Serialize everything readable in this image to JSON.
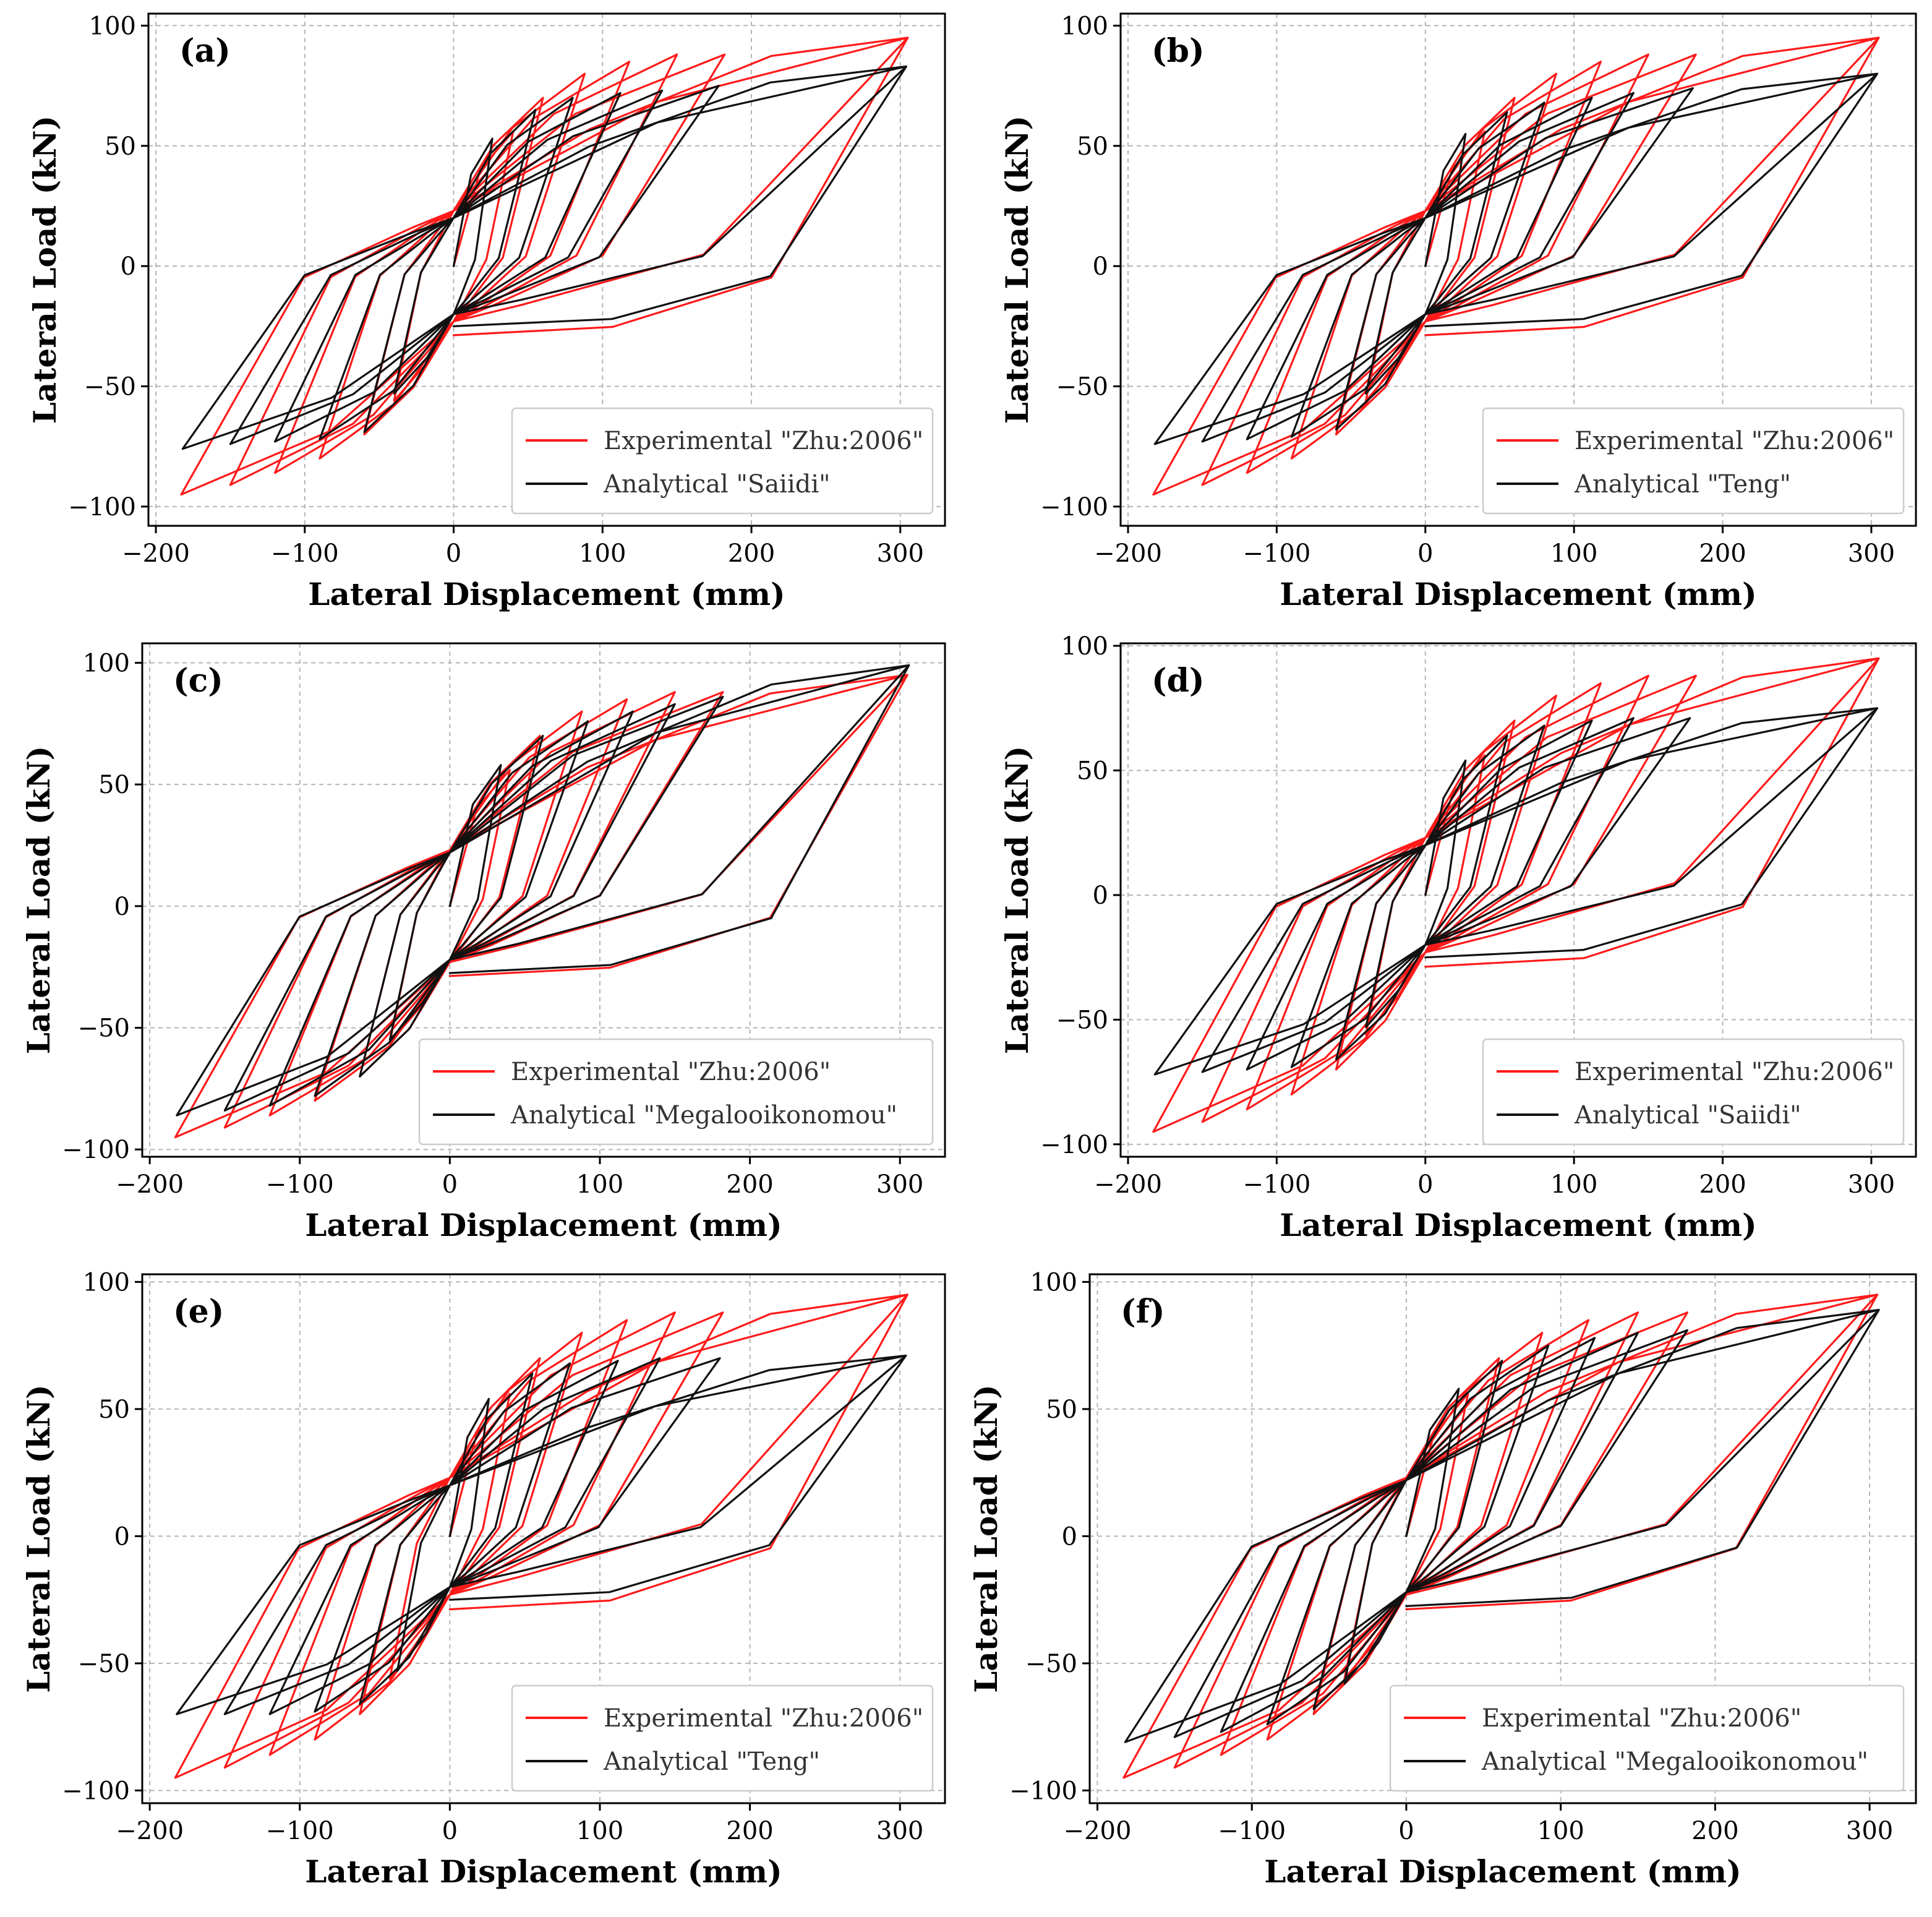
{
  "figure": {
    "colors": {
      "experimental": "#ff1a1a",
      "analytical": "#111111"
    },
    "legend_experimental": "Experimental \"Zhu:2006\""
  },
  "chart_data": [
    {
      "panel": "(a)",
      "type": "line",
      "xlabel": "Lateral Displacement (mm)",
      "ylabel": "Lateral Load (kN)",
      "xlim": [
        -205,
        330
      ],
      "ylim": [
        -108,
        105
      ],
      "xticks": [
        -200,
        -100,
        0,
        100,
        200,
        300
      ],
      "yticks": [
        -100,
        -50,
        0,
        50,
        100
      ],
      "grid": true,
      "legend_position": "lower-right",
      "series": [
        {
          "name": "Experimental \"Zhu:2006\"",
          "role": "experimental",
          "peaks": [
            [
              -40,
              -56
            ],
            [
              -60,
              -70
            ],
            [
              -90,
              -80
            ],
            [
              -120,
              -86
            ],
            [
              -150,
              -91
            ],
            [
              -183,
              -95
            ],
            [
              40,
              56
            ],
            [
              60,
              70
            ],
            [
              88,
              80
            ],
            [
              118,
              85
            ],
            [
              150,
              88
            ],
            [
              182,
              88
            ],
            [
              305,
              95
            ]
          ],
          "unload": [
            -23,
            23
          ]
        },
        {
          "name": "Analytical \"Saiidi\"",
          "role": "analytical",
          "peaks": [
            [
              -40,
              -53
            ],
            [
              -60,
              -69
            ],
            [
              -90,
              -72
            ],
            [
              -120,
              -73
            ],
            [
              -150,
              -74
            ],
            [
              -182,
              -76
            ],
            [
              26,
              53
            ],
            [
              55,
              65
            ],
            [
              80,
              70
            ],
            [
              112,
              72
            ],
            [
              140,
              73
            ],
            [
              178,
              75
            ],
            [
              304,
              83
            ]
          ],
          "unload": [
            -20,
            20
          ]
        }
      ]
    },
    {
      "panel": "(b)",
      "type": "line",
      "xlabel": "Lateral Displacement (mm)",
      "ylabel": "Lateral Load (kN)",
      "xlim": [
        -205,
        330
      ],
      "ylim": [
        -108,
        105
      ],
      "xticks": [
        -200,
        -100,
        0,
        100,
        200,
        300
      ],
      "yticks": [
        -100,
        -50,
        0,
        50,
        100
      ],
      "grid": true,
      "legend_position": "lower-right",
      "series": [
        {
          "name": "Experimental \"Zhu:2006\"",
          "role": "experimental",
          "peaks": [
            [
              -40,
              -56
            ],
            [
              -60,
              -70
            ],
            [
              -90,
              -80
            ],
            [
              -120,
              -86
            ],
            [
              -150,
              -91
            ],
            [
              -183,
              -95
            ],
            [
              40,
              56
            ],
            [
              60,
              70
            ],
            [
              88,
              80
            ],
            [
              118,
              85
            ],
            [
              150,
              88
            ],
            [
              182,
              88
            ],
            [
              305,
              95
            ]
          ],
          "unload": [
            -23,
            23
          ]
        },
        {
          "name": "Analytical \"Teng\"",
          "role": "analytical",
          "peaks": [
            [
              -40,
              -53
            ],
            [
              -60,
              -68
            ],
            [
              -90,
              -71
            ],
            [
              -120,
              -72
            ],
            [
              -150,
              -73
            ],
            [
              -182,
              -74
            ],
            [
              27,
              55
            ],
            [
              55,
              64
            ],
            [
              80,
              68
            ],
            [
              112,
              70
            ],
            [
              140,
              72
            ],
            [
              180,
              74
            ],
            [
              304,
              80
            ]
          ],
          "unload": [
            -20,
            20
          ]
        }
      ]
    },
    {
      "panel": "(c)",
      "type": "line",
      "xlabel": "Lateral Displacement (mm)",
      "ylabel": "Lateral Load (kN)",
      "xlim": [
        -205,
        330
      ],
      "ylim": [
        -103,
        108
      ],
      "xticks": [
        -200,
        -100,
        0,
        100,
        200,
        300
      ],
      "yticks": [
        -100,
        -50,
        0,
        50,
        100
      ],
      "grid": true,
      "legend_position": "lower-right",
      "series": [
        {
          "name": "Experimental \"Zhu:2006\"",
          "role": "experimental",
          "peaks": [
            [
              -40,
              -56
            ],
            [
              -60,
              -70
            ],
            [
              -90,
              -80
            ],
            [
              -120,
              -86
            ],
            [
              -150,
              -91
            ],
            [
              -183,
              -95
            ],
            [
              40,
              56
            ],
            [
              60,
              70
            ],
            [
              88,
              80
            ],
            [
              118,
              85
            ],
            [
              150,
              88
            ],
            [
              182,
              88
            ],
            [
              305,
              95
            ]
          ],
          "unload": [
            -23,
            23
          ]
        },
        {
          "name": "Analytical \"Megalooikonomou\"",
          "role": "analytical",
          "peaks": [
            [
              -40,
              -55
            ],
            [
              -60,
              -70
            ],
            [
              -90,
              -78
            ],
            [
              -120,
              -82
            ],
            [
              -150,
              -84
            ],
            [
              -182,
              -86
            ],
            [
              34,
              58
            ],
            [
              62,
              70
            ],
            [
              92,
              76
            ],
            [
              122,
              80
            ],
            [
              150,
              83
            ],
            [
              182,
              86
            ],
            [
              306,
              99
            ]
          ],
          "unload": [
            -22,
            22
          ]
        }
      ]
    },
    {
      "panel": "(d)",
      "type": "line",
      "xlabel": "Lateral Displacement (mm)",
      "ylabel": "Lateral Load (kN)",
      "xlim": [
        -205,
        330
      ],
      "ylim": [
        -105,
        101
      ],
      "xticks": [
        -200,
        -100,
        0,
        100,
        200,
        300
      ],
      "yticks": [
        -100,
        -50,
        0,
        50,
        100
      ],
      "grid": true,
      "legend_position": "lower-right",
      "series": [
        {
          "name": "Experimental \"Zhu:2006\"",
          "role": "experimental",
          "peaks": [
            [
              -40,
              -56
            ],
            [
              -60,
              -70
            ],
            [
              -90,
              -80
            ],
            [
              -120,
              -86
            ],
            [
              -150,
              -91
            ],
            [
              -183,
              -95
            ],
            [
              40,
              56
            ],
            [
              60,
              70
            ],
            [
              88,
              80
            ],
            [
              118,
              85
            ],
            [
              150,
              88
            ],
            [
              182,
              88
            ],
            [
              305,
              95
            ]
          ],
          "unload": [
            -23,
            23
          ]
        },
        {
          "name": "Analytical \"Saiidi\"",
          "role": "analytical",
          "peaks": [
            [
              -40,
              -53
            ],
            [
              -60,
              -66
            ],
            [
              -90,
              -69
            ],
            [
              -120,
              -70
            ],
            [
              -150,
              -71
            ],
            [
              -182,
              -72
            ],
            [
              27,
              54
            ],
            [
              55,
              64
            ],
            [
              80,
              68
            ],
            [
              112,
              70
            ],
            [
              140,
              71
            ],
            [
              178,
              71
            ],
            [
              304,
              75
            ]
          ],
          "unload": [
            -20,
            20
          ]
        }
      ]
    },
    {
      "panel": "(e)",
      "type": "line",
      "xlabel": "Lateral Displacement (mm)",
      "ylabel": "Lateral Load (kN)",
      "xlim": [
        -205,
        330
      ],
      "ylim": [
        -105,
        103
      ],
      "xticks": [
        -200,
        -100,
        0,
        100,
        200,
        300
      ],
      "yticks": [
        -100,
        -50,
        0,
        50,
        100
      ],
      "grid": true,
      "legend_position": "lower-right",
      "series": [
        {
          "name": "Experimental \"Zhu:2006\"",
          "role": "experimental",
          "peaks": [
            [
              -40,
              -56
            ],
            [
              -60,
              -70
            ],
            [
              -90,
              -80
            ],
            [
              -120,
              -86
            ],
            [
              -150,
              -91
            ],
            [
              -183,
              -95
            ],
            [
              40,
              56
            ],
            [
              60,
              70
            ],
            [
              88,
              80
            ],
            [
              118,
              85
            ],
            [
              150,
              88
            ],
            [
              182,
              88
            ],
            [
              305,
              95
            ]
          ],
          "unload": [
            -23,
            23
          ]
        },
        {
          "name": "Analytical \"Teng\"",
          "role": "analytical",
          "peaks": [
            [
              -35,
              -53
            ],
            [
              -60,
              -66
            ],
            [
              -90,
              -69
            ],
            [
              -120,
              -70
            ],
            [
              -150,
              -70
            ],
            [
              -182,
              -70
            ],
            [
              26,
              54
            ],
            [
              55,
              64
            ],
            [
              80,
              68
            ],
            [
              112,
              69
            ],
            [
              140,
              70
            ],
            [
              180,
              70
            ],
            [
              304,
              71
            ]
          ],
          "unload": [
            -20,
            20
          ]
        }
      ]
    },
    {
      "panel": "(f)",
      "type": "line",
      "xlabel": "Lateral Displacement (mm)",
      "ylabel": "Lateral Load (kN)",
      "xlim": [
        -205,
        330
      ],
      "ylim": [
        -105,
        103
      ],
      "xticks": [
        -200,
        -100,
        0,
        100,
        200,
        300
      ],
      "yticks": [
        -100,
        -50,
        0,
        50,
        100
      ],
      "grid": true,
      "legend_position": "lower-right",
      "series": [
        {
          "name": "Experimental \"Zhu:2006\"",
          "role": "experimental",
          "peaks": [
            [
              -40,
              -56
            ],
            [
              -60,
              -70
            ],
            [
              -90,
              -80
            ],
            [
              -120,
              -86
            ],
            [
              -150,
              -91
            ],
            [
              -183,
              -95
            ],
            [
              40,
              56
            ],
            [
              60,
              70
            ],
            [
              88,
              80
            ],
            [
              118,
              85
            ],
            [
              150,
              88
            ],
            [
              182,
              88
            ],
            [
              305,
              95
            ]
          ],
          "unload": [
            -23,
            23
          ]
        },
        {
          "name": "Analytical \"Megalooikonomou\"",
          "role": "analytical",
          "peaks": [
            [
              -40,
              -58
            ],
            [
              -60,
              -68
            ],
            [
              -90,
              -74
            ],
            [
              -120,
              -77
            ],
            [
              -150,
              -79
            ],
            [
              -182,
              -81
            ],
            [
              34,
              58
            ],
            [
              62,
              69
            ],
            [
              92,
              75
            ],
            [
              122,
              78
            ],
            [
              150,
              80
            ],
            [
              182,
              81
            ],
            [
              306,
              89
            ]
          ],
          "unload": [
            -22,
            22
          ]
        }
      ]
    }
  ]
}
